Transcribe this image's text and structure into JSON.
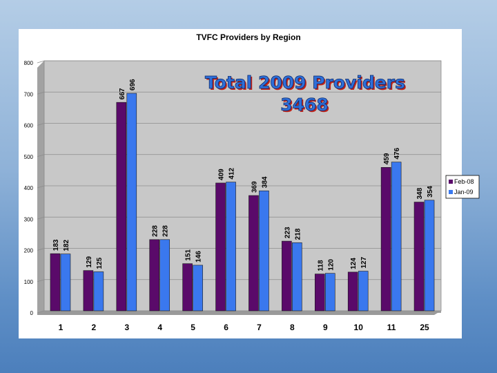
{
  "chart_data": {
    "type": "bar",
    "title": "TVFC Providers by Region",
    "annotation_line1": "Total 2009 Providers",
    "annotation_line2": "3468",
    "categories": [
      "1",
      "2",
      "3",
      "4",
      "5",
      "6",
      "7",
      "8",
      "9",
      "10",
      "11",
      "25"
    ],
    "series": [
      {
        "name": "Feb-08",
        "color": "#5a0a6a",
        "values": [
          183,
          129,
          667,
          228,
          151,
          409,
          369,
          223,
          118,
          124,
          459,
          348
        ]
      },
      {
        "name": "Jan-09",
        "color": "#3a78ee",
        "values": [
          182,
          125,
          696,
          228,
          146,
          412,
          384,
          218,
          120,
          127,
          476,
          354
        ]
      }
    ],
    "ylim": [
      0,
      800
    ],
    "yticks": [
      "0",
      "100",
      "200",
      "300",
      "400",
      "500",
      "600",
      "700",
      "800"
    ],
    "grid": true,
    "legend_position": "right",
    "xlabel": "",
    "ylabel": ""
  }
}
